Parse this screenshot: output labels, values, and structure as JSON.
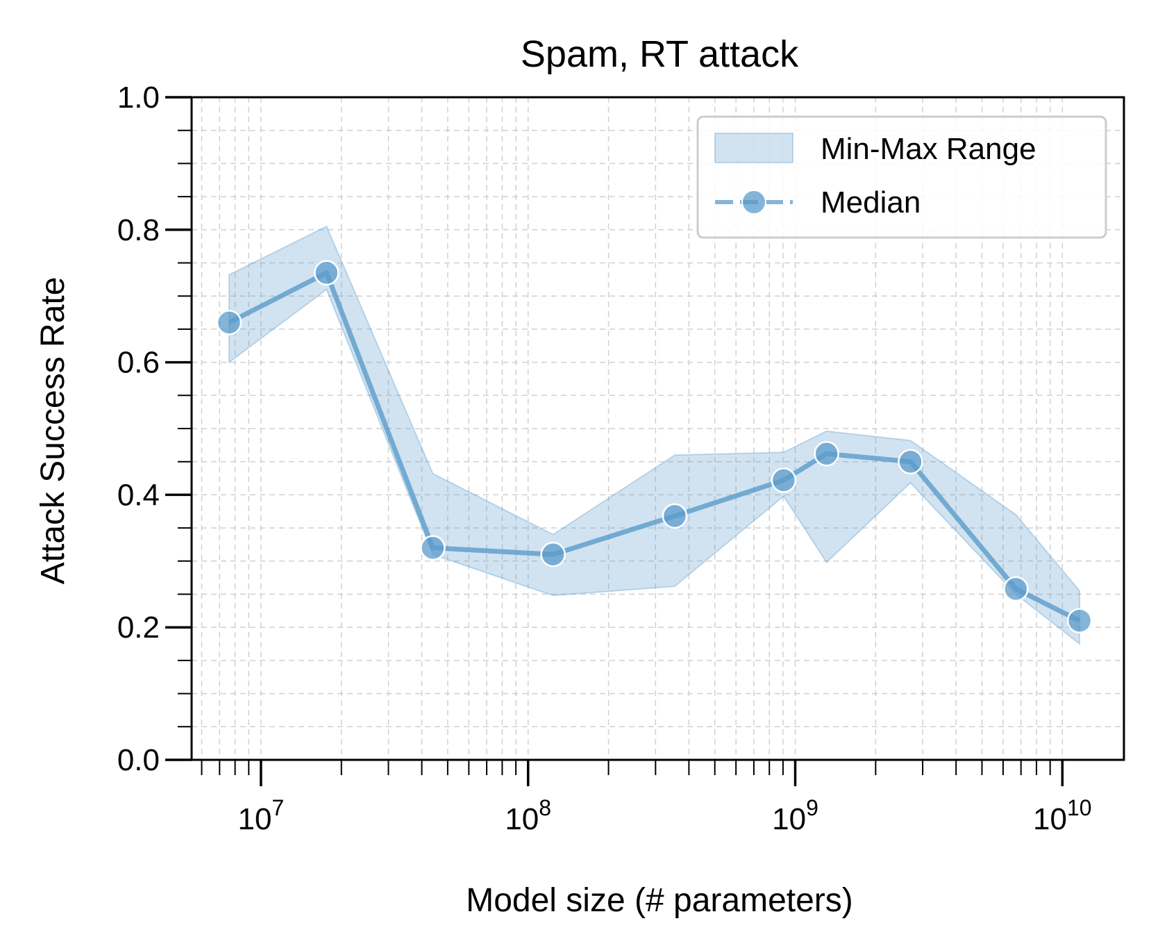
{
  "chart_data": {
    "type": "line",
    "title": "Spam, RT attack",
    "xlabel": "Model size (# parameters)",
    "ylabel": "Attack Success Rate",
    "xscale": "log",
    "xlim": [
      5500000,
      17000000000
    ],
    "ylim": [
      0.0,
      1.0
    ],
    "yticks": [
      "0.0",
      "0.2",
      "0.4",
      "0.6",
      "0.8",
      "1.0"
    ],
    "xticks": [
      {
        "base": "10",
        "exp": "7"
      },
      {
        "base": "10",
        "exp": "8"
      },
      {
        "base": "10",
        "exp": "9"
      },
      {
        "base": "10",
        "exp": "10"
      }
    ],
    "grid": true,
    "legend_position": "top-right",
    "color": "#5b9bcb",
    "x": [
      7600000,
      17600000,
      44000000,
      124000000,
      354000000,
      905000000,
      1310000000,
      2700000000,
      6700000000,
      11600000000
    ],
    "series": [
      {
        "name": "Median",
        "values": [
          0.66,
          0.735,
          0.32,
          0.31,
          0.368,
          0.422,
          0.462,
          0.45,
          0.258,
          0.21
        ]
      },
      {
        "name": "Min-Max Range",
        "min": [
          0.6,
          0.71,
          0.31,
          0.248,
          0.262,
          0.398,
          0.298,
          0.418,
          0.25,
          0.175
        ],
        "max": [
          0.732,
          0.805,
          0.432,
          0.34,
          0.46,
          0.464,
          0.496,
          0.482,
          0.37,
          0.255
        ]
      }
    ],
    "legend": [
      "Min-Max Range",
      "Median"
    ]
  }
}
